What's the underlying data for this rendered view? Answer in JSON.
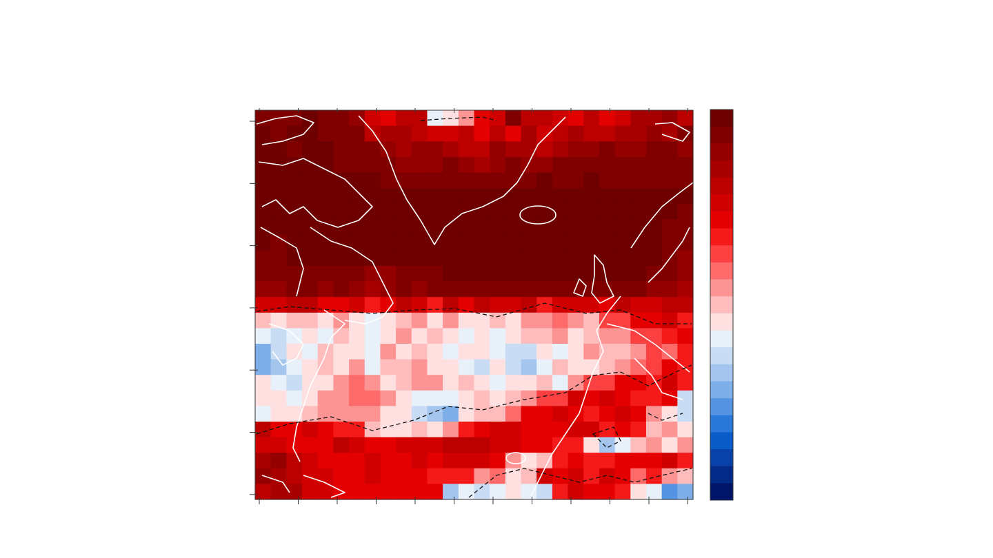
{
  "map": {
    "colorbar": [
      "#6e0000",
      "#800000",
      "#940000",
      "#a80000",
      "#bc0000",
      "#d00000",
      "#e40000",
      "#f51a1a",
      "#fa4040",
      "#fc6a6a",
      "#fd9494",
      "#febcbc",
      "#ffe0e0",
      "#e8f0fa",
      "#c8dcf4",
      "#a4c6ee",
      "#7eaee8",
      "#5494e2",
      "#2a78d8",
      "#0a5cc8",
      "#0842a8",
      "#042a88",
      "#001468"
    ],
    "rows": [
      "bbbabbcfgeenmkgfbeefgegfddce",
      "abaabbbeddeffegegdfedeeddcdb",
      "aabaabbbcdccdeecddedccbccbbc",
      "aaaaabbbbcccbcdcbccbbbbbbbbb",
      "aaaaaaaabbbbbbbbbbabbabbbbbb",
      "aaaaaaaaaaaaaaaaaaaaaaaaaaaa",
      "aaaaaaaaaaaaaaaaaaaaaaaaaaab",
      "aaaaaaaaaaaaaaaaaaaaaaaaaabb",
      "abaaaaaaaaaaaaaaaaaaaaaaaabb",
      "bbaaaaaaaaaaaaaaaaaaaaaaaabc",
      "bbbbbbbccbbbaaaaaaaaaaaaabbc",
      "ccbbcbcdcbcbbbbbbbbbbbbbbccd",
      "ffeeggfhgefhegeffehfffgeffee",
      "lmllmkmnmlkmkmmlmkkjkliiggfh",
      "nonmnlmnmkmlmnmnmllkmlkkiihg",
      "qomnlmmnkmlmnmmnoomnmkllkijh",
      "qpnmlmknllkmmnomopnlmmlkjigh",
      "mnommkjkmlkkmlmnmmlnkiigghfh",
      "mmnmkkjjkmnnnmlmlkiifgfghhgo",
      "nmmlkkkkmmopqmlljggfghgfgkmo",
      "eggfghhlmmlmkhgffgggffhghlkm",
      "ffgggefggfffeeeffgghhmpnlkmk",
      "dcefgggfggfgfffgkmlhghhgggfh",
      "cdeffggfggghhhkjmlfgfhfgjhkl",
      "eddffgggggggpnonmnohfgghmnrq"
    ]
  }
}
